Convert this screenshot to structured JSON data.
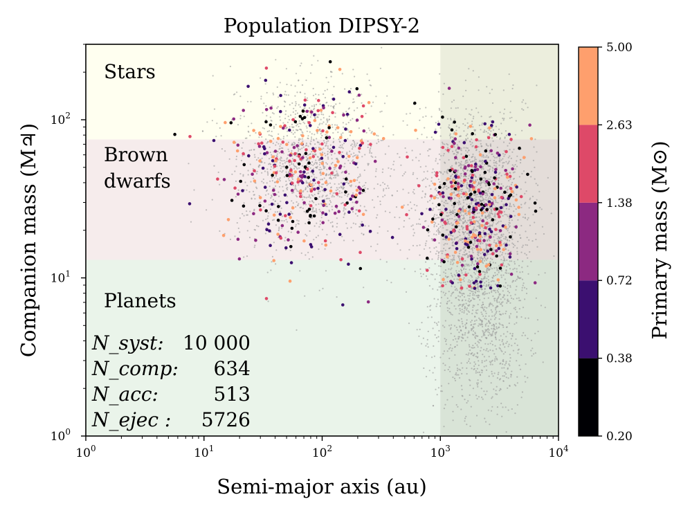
{
  "chart_data": {
    "type": "scatter",
    "title": "Population DIPSY-2",
    "xlabel": "Semi-major axis (au)",
    "ylabel": "Companion mass (M♃)",
    "xscale": "log",
    "yscale": "log",
    "xlim": [
      1,
      10000
    ],
    "ylim": [
      1,
      300
    ],
    "x_ticks": [
      1,
      10,
      100,
      1000,
      10000
    ],
    "x_tick_labels": [
      "10^0",
      "10^1",
      "10^2",
      "10^3",
      "10^4"
    ],
    "y_ticks": [
      1,
      10,
      100
    ],
    "y_tick_labels": [
      "10^0",
      "10^1",
      "10^2"
    ],
    "regions": [
      {
        "name": "Stars",
        "mass_range": [
          75,
          300
        ],
        "color": "#fffff0"
      },
      {
        "name": "Brown dwarfs",
        "mass_range": [
          13,
          75
        ],
        "color": "#f6ecec"
      },
      {
        "name": "Planets",
        "mass_range": [
          1,
          13
        ],
        "color": "#eaf4ea"
      }
    ],
    "region_labels": {
      "stars": "Stars",
      "brown_line1": "Brown",
      "brown_line2": "dwarfs",
      "planets": "Planets"
    },
    "shaded_x_range": [
      1000,
      10000
    ],
    "shaded_color": "#6b7a5a",
    "stats": [
      {
        "label": "N_syst:",
        "value": "10 000"
      },
      {
        "label": "N_comp:",
        "value": "634"
      },
      {
        "label": "N_acc:",
        "value": "513"
      },
      {
        "label": "N_ejec :",
        "value": "5726"
      }
    ],
    "colorbar": {
      "label": "Primary mass (M⊙)",
      "ticks": [
        "0.20",
        "0.38",
        "0.72",
        "1.38",
        "2.63",
        "5.00"
      ],
      "colors": [
        "#000004",
        "#3b0f70",
        "#8c2981",
        "#de4968",
        "#fe9f6d"
      ]
    },
    "background_population": {
      "description": "gray points",
      "count": 4200,
      "color": "#9a9a9a"
    },
    "companion_clusters": [
      {
        "log_a_mean": 1.85,
        "log_a_sd": 0.32,
        "log_m_mean": 1.65,
        "log_m_sd": 0.28,
        "count": 310
      },
      {
        "log_a_mean": 3.3,
        "log_a_sd": 0.2,
        "log_m_mean": 1.45,
        "log_m_sd": 0.28,
        "count": 324
      }
    ]
  }
}
